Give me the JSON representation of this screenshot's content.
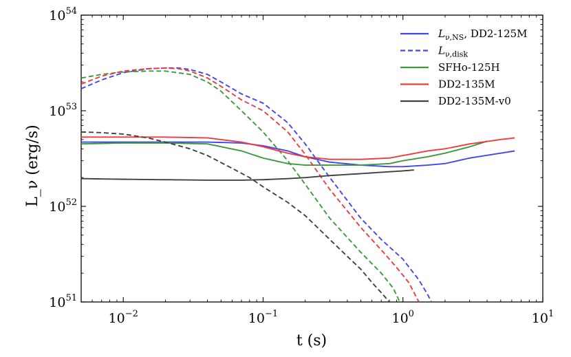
{
  "chart_data": {
    "type": "line",
    "title": "",
    "xlabel": "t (s)",
    "ylabel": "L_ν (erg/s)",
    "x_scale": "log",
    "y_scale": "log",
    "xlim": [
      0.005,
      10
    ],
    "ylim": [
      1e+51,
      1e+54
    ],
    "x_ticks": [
      {
        "value": 0.01,
        "base": "10",
        "exp": "−2"
      },
      {
        "value": 0.1,
        "base": "10",
        "exp": "−1"
      },
      {
        "value": 1,
        "base": "10",
        "exp": "0"
      },
      {
        "value": 10,
        "base": "10",
        "exp": "1"
      }
    ],
    "y_ticks": [
      {
        "value": 1e+51,
        "base": "10",
        "exp": "51"
      },
      {
        "value": 1e+52,
        "base": "10",
        "exp": "52"
      },
      {
        "value": 1e+53,
        "base": "10",
        "exp": "53"
      },
      {
        "value": 1e+54,
        "base": "10",
        "exp": "54"
      }
    ],
    "legend": {
      "position": "top-right",
      "entries": [
        {
          "label": "L_ν,NS, DD2-125M",
          "main": "L",
          "sub": "ν,NS",
          "rest": ", DD2-125M",
          "color": "#4444ee",
          "dash": "solid"
        },
        {
          "label": "L_ν,disk",
          "main": "L",
          "sub": "ν,disk",
          "rest": "",
          "color": "#4444ee",
          "dash": "dashed"
        },
        {
          "label": "SFHo-125H",
          "main": "",
          "sub": "",
          "rest": "SFHo-125H",
          "color": "#3a9a3a",
          "dash": "solid"
        },
        {
          "label": "DD2-135M",
          "main": "",
          "sub": "",
          "rest": "DD2-135M",
          "color": "#ee3b3b",
          "dash": "solid"
        },
        {
          "label": "DD2-135M-v0",
          "main": "",
          "sub": "",
          "rest": "DD2-135M-v0",
          "color": "#404040",
          "dash": "solid"
        }
      ]
    },
    "series": [
      {
        "name": "DD2-125M L_nu,NS",
        "model": "DD2-125M",
        "kind": "NS",
        "color": "#4444ee",
        "x": [
          0.005,
          0.01,
          0.02,
          0.04,
          0.07,
          0.1,
          0.15,
          0.2,
          0.3,
          0.5,
          0.8,
          1.0,
          1.5,
          2.0,
          3.0,
          5.0,
          6.3
        ],
        "y": [
          4.7e+52,
          4.7e+52,
          4.7e+52,
          4.7e+52,
          4.6e+52,
          4.3e+52,
          3.8e+52,
          3.3e+52,
          2.9e+52,
          2.7e+52,
          2.6e+52,
          2.6e+52,
          2.7e+52,
          2.8e+52,
          3.2e+52,
          3.6e+52,
          3.8e+52
        ]
      },
      {
        "name": "DD2-125M L_nu,disk",
        "model": "DD2-125M",
        "kind": "disk",
        "color": "#4444ee",
        "x": [
          0.005,
          0.007,
          0.01,
          0.015,
          0.02,
          0.025,
          0.03,
          0.04,
          0.05,
          0.07,
          0.1,
          0.15,
          0.2,
          0.3,
          0.5,
          0.7,
          1.0,
          1.3,
          1.5,
          1.6
        ],
        "y": [
          1.7e+53,
          2.1e+53,
          2.5e+53,
          2.75e+53,
          2.8e+53,
          2.8e+53,
          2.7e+53,
          2.4e+53,
          2e+53,
          1.5e+53,
          1.2e+53,
          7.5e+52,
          4.5e+52,
          2e+52,
          7.5e+51,
          4.5e+51,
          2.8e+51,
          1.7e+51,
          1.2e+51,
          1e+51
        ]
      },
      {
        "name": "SFHo-125H L_nu,NS",
        "model": "SFHo-125H",
        "kind": "NS",
        "color": "#3a9a3a",
        "x": [
          0.005,
          0.01,
          0.02,
          0.04,
          0.07,
          0.1,
          0.15,
          0.2,
          0.3,
          0.5,
          0.8,
          1.0,
          1.5,
          2.0,
          3.0,
          4.0
        ],
        "y": [
          4.5e+52,
          4.6e+52,
          4.6e+52,
          4.5e+52,
          3.8e+52,
          3.2e+52,
          2.8e+52,
          2.7e+52,
          2.7e+52,
          2.7e+52,
          2.8e+52,
          3e+52,
          3.3e+52,
          3.6e+52,
          4.2e+52,
          4.8e+52
        ]
      },
      {
        "name": "SFHo-125H L_nu,disk",
        "model": "SFHo-125H",
        "kind": "disk",
        "color": "#3a9a3a",
        "x": [
          0.005,
          0.007,
          0.01,
          0.015,
          0.02,
          0.03,
          0.04,
          0.05,
          0.07,
          0.1,
          0.15,
          0.2,
          0.3,
          0.5,
          0.7,
          0.85,
          0.95
        ],
        "y": [
          2.2e+53,
          2.4e+53,
          2.55e+53,
          2.6e+53,
          2.6e+53,
          2.4e+53,
          2e+53,
          1.6e+53,
          1e+53,
          6e+52,
          3e+52,
          1.7e+52,
          7.5e+51,
          3.3e+51,
          2e+51,
          1.4e+51,
          1e+51
        ]
      },
      {
        "name": "DD2-135M L_nu,NS",
        "model": "DD2-135M",
        "kind": "NS",
        "color": "#ee3b3b",
        "x": [
          0.005,
          0.01,
          0.02,
          0.04,
          0.07,
          0.1,
          0.15,
          0.2,
          0.3,
          0.5,
          0.8,
          1.0,
          1.5,
          2.0,
          3.0,
          5.0,
          6.3
        ],
        "y": [
          5.3e+52,
          5.3e+52,
          5.3e+52,
          5.2e+52,
          4.7e+52,
          4.2e+52,
          3.6e+52,
          3.3e+52,
          3.1e+52,
          3.1e+52,
          3.2e+52,
          3.4e+52,
          3.8e+52,
          4e+52,
          4.5e+52,
          5e+52,
          5.2e+52
        ]
      },
      {
        "name": "DD2-135M L_nu,disk",
        "model": "DD2-135M",
        "kind": "disk",
        "color": "#ee3b3b",
        "x": [
          0.005,
          0.007,
          0.01,
          0.015,
          0.02,
          0.025,
          0.03,
          0.04,
          0.05,
          0.07,
          0.1,
          0.15,
          0.2,
          0.3,
          0.5,
          0.7,
          0.9,
          1.1,
          1.3
        ],
        "y": [
          1.9e+53,
          2.3e+53,
          2.6e+53,
          2.75e+53,
          2.8e+53,
          2.75e+53,
          2.6e+53,
          2.2e+53,
          1.8e+53,
          1.3e+53,
          1e+53,
          6e+52,
          3.5e+52,
          1.5e+52,
          6e+51,
          3.5e+51,
          2.3e+51,
          1.6e+51,
          1e+51
        ]
      },
      {
        "name": "DD2-135M-v0 L_nu,NS",
        "model": "DD2-135M-v0",
        "kind": "NS",
        "color": "#404040",
        "x": [
          0.005,
          0.01,
          0.02,
          0.04,
          0.07,
          0.1,
          0.15,
          0.2,
          0.3,
          0.5,
          0.8,
          1.0,
          1.2
        ],
        "y": [
          1.95e+52,
          1.92e+52,
          1.9e+52,
          1.88e+52,
          1.88e+52,
          1.9e+52,
          1.95e+52,
          2e+52,
          2.1e+52,
          2.2e+52,
          2.3e+52,
          2.35e+52,
          2.4e+52
        ]
      },
      {
        "name": "DD2-135M-v0 L_nu,disk",
        "model": "DD2-135M-v0",
        "kind": "disk",
        "color": "#404040",
        "x": [
          0.005,
          0.007,
          0.01,
          0.015,
          0.02,
          0.03,
          0.04,
          0.06,
          0.08,
          0.1,
          0.15,
          0.2,
          0.3,
          0.4,
          0.5,
          0.6,
          0.7,
          0.8
        ],
        "y": [
          6e+52,
          5.9e+52,
          5.7e+52,
          5.2e+52,
          4.7e+52,
          4e+52,
          3.4e+52,
          2.5e+52,
          2e+52,
          1.6e+52,
          1.1e+52,
          8e+51,
          4.5e+51,
          3e+51,
          2.2e+51,
          1.6e+51,
          1.25e+51,
          1e+51
        ]
      }
    ]
  }
}
